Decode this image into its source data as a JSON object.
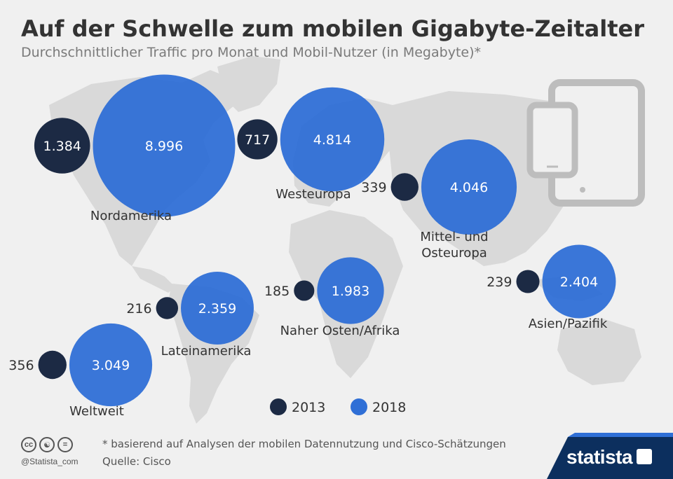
{
  "title": "Auf der Schwelle zum mobilen Gigabyte-Zeitalter",
  "subtitle": "Durchschnittlicher Traffic pro Monat und Mobil-Nutzer (in Megabyte)*",
  "chart_data": {
    "type": "bubble",
    "series": [
      {
        "name": "2013",
        "color": "#1c2a44"
      },
      {
        "name": "2018",
        "color": "#2f6fd6"
      }
    ],
    "regions": [
      {
        "name": "Nordamerika",
        "value_2013": 1384,
        "label_2013": "1.384",
        "value_2018": 8996,
        "label_2018": "8.996"
      },
      {
        "name": "Westeuropa",
        "value_2013": 717,
        "label_2013": "717",
        "value_2018": 4814,
        "label_2018": "4.814"
      },
      {
        "name": "Mittel- und Osteuropa",
        "value_2013": 339,
        "label_2013": "339",
        "value_2018": 4046,
        "label_2018": "4.046"
      },
      {
        "name": "Lateinamerika",
        "value_2013": 216,
        "label_2013": "216",
        "value_2018": 2359,
        "label_2018": "2.359"
      },
      {
        "name": "Naher Osten/Afrika",
        "value_2013": 185,
        "label_2013": "185",
        "value_2018": 1983,
        "label_2018": "1.983"
      },
      {
        "name": "Asien/Pazifik",
        "value_2013": 239,
        "label_2013": "239",
        "value_2018": 2404,
        "label_2018": "2.404"
      },
      {
        "name": "Weltweit",
        "value_2013": 356,
        "label_2013": "356",
        "value_2018": 3049,
        "label_2018": "3.049"
      }
    ],
    "legend": [
      "2013",
      "2018"
    ],
    "legend_position": "bottom"
  },
  "footer": {
    "note": "* basierend auf Analysen der mobilen Datennutzung und Cisco-Schätzungen",
    "source": "Quelle: Cisco",
    "credit": "@Statista_com",
    "brand": "statista"
  },
  "colors": {
    "map": "#d9d9d9",
    "device": "#bdbdbd",
    "brand_band": "#0c2f5e",
    "brand_stripe": "#2f6fd6"
  }
}
